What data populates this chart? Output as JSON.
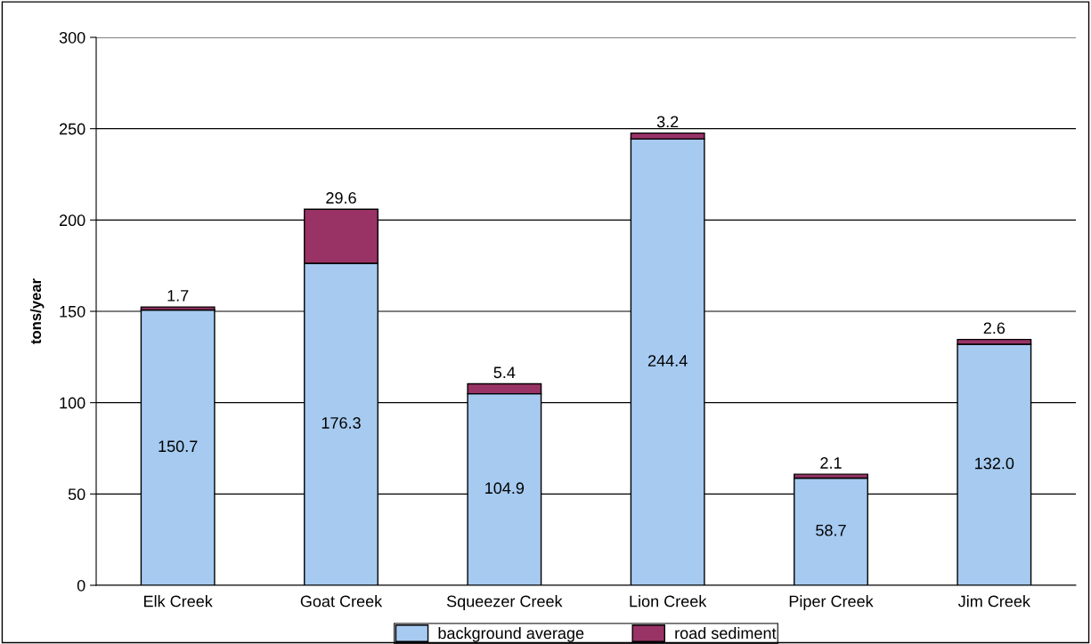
{
  "chart_data": {
    "type": "bar",
    "stacked": true,
    "ylabel": "tons/year",
    "categories": [
      "Elk Creek",
      "Goat Creek",
      "Squeezer Creek",
      "Lion Creek",
      "Piper Creek",
      "Jim Creek"
    ],
    "series": [
      {
        "name": "background average",
        "color": "#a6caf0",
        "values": [
          150.7,
          176.3,
          104.9,
          244.4,
          58.7,
          132.0
        ],
        "value_labels": [
          "150.7",
          "176.3",
          "104.9",
          "244.4",
          "58.7",
          "132.0"
        ]
      },
      {
        "name": "road sediment",
        "color": "#993366",
        "values": [
          1.7,
          29.6,
          5.4,
          3.2,
          2.1,
          2.6
        ],
        "value_labels": [
          "1.7",
          "29.6",
          "5.4",
          "3.2",
          "2.1",
          "2.6"
        ]
      }
    ],
    "ylim": [
      0,
      300
    ],
    "yticks": [
      0,
      50,
      100,
      150,
      200,
      250,
      300
    ],
    "grid": "y",
    "legend": "bottom"
  }
}
